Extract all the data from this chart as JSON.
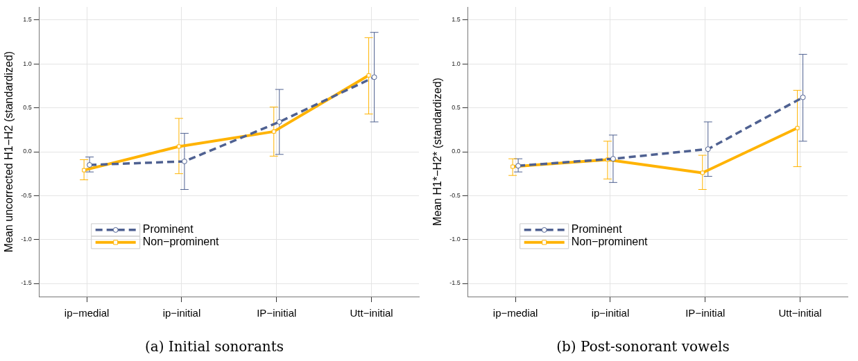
{
  "chart_data": [
    {
      "type": "line",
      "ylabel": "Mean uncorrected H1−H2 (standardized)",
      "annotations": [
        "(a) Initial sonorants"
      ],
      "categories": [
        "ip−medial",
        "ip−initial",
        "IP−initial",
        "Utt−initial"
      ],
      "ylim": [
        -1.65,
        1.65
      ],
      "yticks": [
        {
          "value": -1.5,
          "label": "-1.5"
        },
        {
          "value": -1,
          "label": "-1.0"
        },
        {
          "value": -0.5,
          "label": "-0.5"
        },
        {
          "value": 0,
          "label": "0.0"
        },
        {
          "value": 0.5,
          "label": "0.5"
        },
        {
          "value": 1,
          "label": "1.0"
        },
        {
          "value": 1.5,
          "label": "1.5"
        }
      ],
      "grid": true,
      "legend": "bottom left",
      "series": [
        {
          "name": "Prominent",
          "color": "#4f6191",
          "marker": "circle",
          "line_style": "dashed",
          "values": [
            -0.15,
            -0.11,
            0.34,
            0.85
          ],
          "errors": [
            [
              -0.23,
              -0.06
            ],
            [
              -0.43,
              0.21
            ],
            [
              -0.03,
              0.71
            ],
            [
              0.34,
              1.36
            ]
          ]
        },
        {
          "name": "Non−prominent",
          "color": "#ffb300",
          "marker": "square",
          "line_style": "solid",
          "values": [
            -0.21,
            0.06,
            0.23,
            0.87
          ],
          "errors": [
            [
              -0.32,
              -0.09
            ],
            [
              -0.25,
              0.38
            ],
            [
              -0.05,
              0.51
            ],
            [
              0.43,
              1.3
            ]
          ]
        }
      ]
    },
    {
      "type": "line",
      "ylabel": "Mean H1*−H2* (standardized)",
      "annotations": [
        "(b) Post-sonorant vowels"
      ],
      "categories": [
        "ip−medial",
        "ip−initial",
        "IP−initial",
        "Utt−initial"
      ],
      "ylim": [
        -1.65,
        1.65
      ],
      "yticks": [
        {
          "value": -1.5,
          "label": "-1.5"
        },
        {
          "value": -1,
          "label": "-1.0"
        },
        {
          "value": -0.5,
          "label": "-0.5"
        },
        {
          "value": 0,
          "label": "0.0"
        },
        {
          "value": 0.5,
          "label": "0.5"
        },
        {
          "value": 1,
          "label": "1.0"
        },
        {
          "value": 1.5,
          "label": "1.5"
        }
      ],
      "grid": true,
      "legend": "bottom left",
      "series": [
        {
          "name": "Prominent",
          "color": "#4f6191",
          "marker": "circle",
          "line_style": "dashed",
          "values": [
            -0.16,
            -0.08,
            0.03,
            0.62
          ],
          "errors": [
            [
              -0.23,
              -0.08
            ],
            [
              -0.35,
              0.19
            ],
            [
              -0.28,
              0.34
            ],
            [
              0.12,
              1.11
            ]
          ]
        },
        {
          "name": "Non−prominent",
          "color": "#ffb300",
          "marker": "square",
          "line_style": "solid",
          "values": [
            -0.17,
            -0.09,
            -0.24,
            0.27
          ],
          "errors": [
            [
              -0.27,
              -0.08
            ],
            [
              -0.31,
              0.12
            ],
            [
              -0.43,
              -0.04
            ],
            [
              -0.17,
              0.7
            ]
          ]
        }
      ]
    }
  ]
}
